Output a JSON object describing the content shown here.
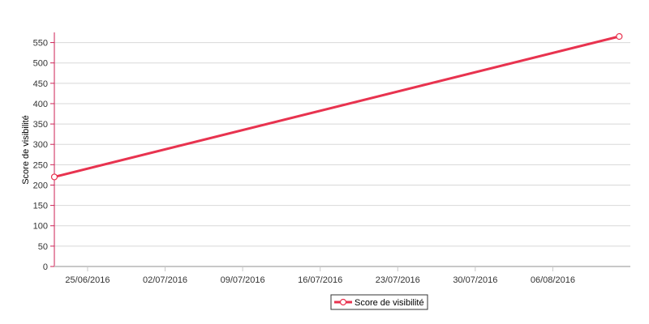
{
  "chart_data": {
    "type": "line",
    "title": "",
    "xlabel": "",
    "ylabel": "Score de visibilité",
    "ylim": [
      0,
      575
    ],
    "yticks": [
      0,
      50,
      100,
      150,
      200,
      250,
      300,
      350,
      400,
      450,
      500,
      550
    ],
    "xlim": [
      "2016-06-22",
      "2016-08-13"
    ],
    "xticks": [
      {
        "date": "2016-06-25",
        "label": "25/06/2016"
      },
      {
        "date": "2016-07-02",
        "label": "02/07/2016"
      },
      {
        "date": "2016-07-09",
        "label": "09/07/2016"
      },
      {
        "date": "2016-07-16",
        "label": "16/07/2016"
      },
      {
        "date": "2016-07-23",
        "label": "23/07/2016"
      },
      {
        "date": "2016-07-30",
        "label": "30/07/2016"
      },
      {
        "date": "2016-08-06",
        "label": "06/08/2016"
      }
    ],
    "grid": true,
    "legend_position": "bottom-center",
    "series": [
      {
        "name": "Score de visibilité",
        "color": "#e8334f",
        "points": [
          {
            "x": "2016-06-22",
            "y": 220
          },
          {
            "x": "2016-08-12",
            "y": 565
          }
        ]
      }
    ]
  },
  "colors": {
    "axis": "#cc2255",
    "grid": "#d8d8d8",
    "tick_label": "#333333"
  }
}
